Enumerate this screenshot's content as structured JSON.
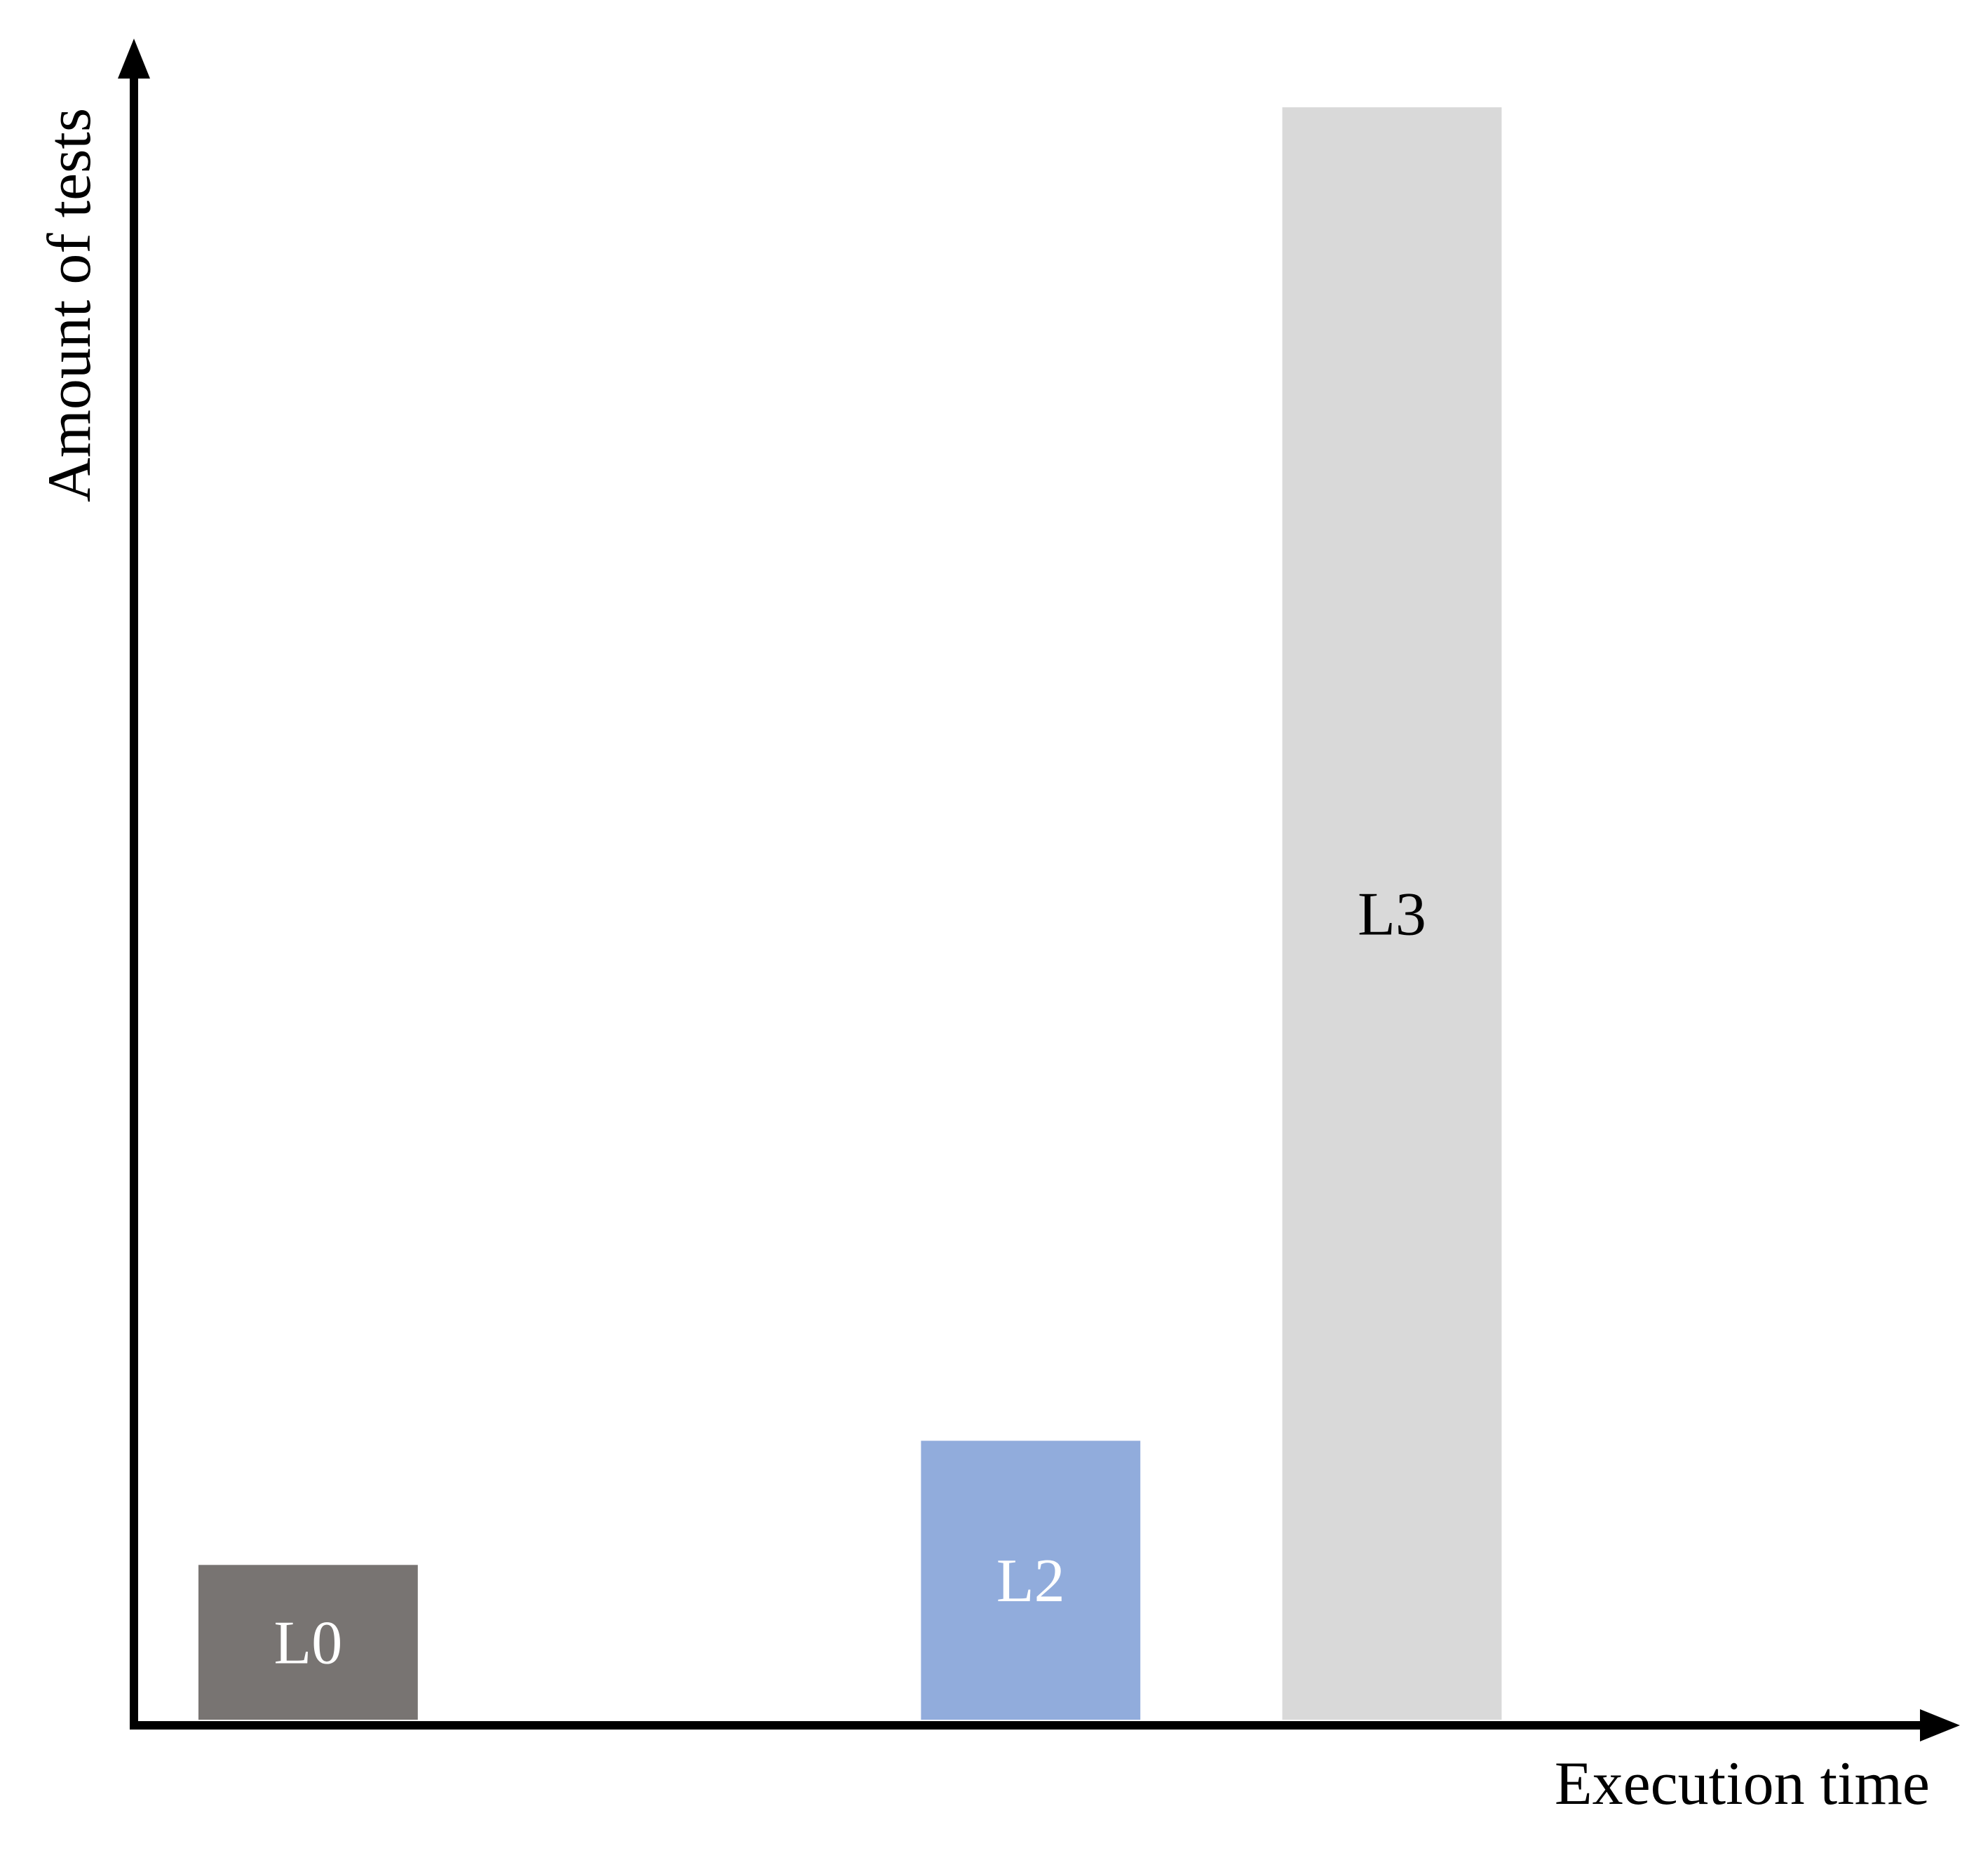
{
  "chart_data": {
    "type": "bar",
    "title": "",
    "xlabel": "Execution time",
    "ylabel": "Amount of tests",
    "grid": false,
    "legend": "none",
    "ylim": [
      0,
      100
    ],
    "bars": [
      {
        "label": "L0",
        "x_start": 5,
        "x_end": 22,
        "value": 9.6,
        "color": "#787472",
        "label_color": "#ffffff"
      },
      {
        "label": "L2",
        "x_start": 61,
        "x_end": 78,
        "value": 17.3,
        "color": "#91acdc",
        "label_color": "#ffffff"
      },
      {
        "label": "L3",
        "x_start": 89,
        "x_end": 106,
        "value": 100,
        "color": "#d9d9d9",
        "label_color": "#000000"
      }
    ]
  }
}
